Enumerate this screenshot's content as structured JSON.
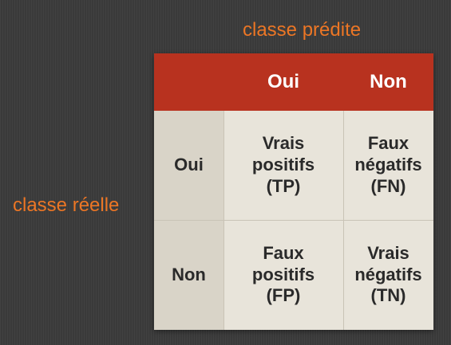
{
  "labels": {
    "predicted_class": "classe prédite",
    "actual_class": "classe réelle"
  },
  "columns": [
    "Oui",
    "Non"
  ],
  "rows": [
    {
      "label": "Oui",
      "cells": [
        {
          "line1": "Vrais",
          "line2": "positifs",
          "line3": "(TP)"
        },
        {
          "line1": "Faux",
          "line2": "négatifs",
          "line3": "(FN)"
        }
      ]
    },
    {
      "label": "Non",
      "cells": [
        {
          "line1": "Faux",
          "line2": "positifs",
          "line3": "(FP)"
        },
        {
          "line1": "Vrais",
          "line2": "négatifs",
          "line3": "(TN)"
        }
      ]
    }
  ],
  "colors": {
    "accent_orange": "#ec7625",
    "header_red": "#b8321f",
    "row_header_bg": "#d9d4c8",
    "cell_bg": "#e8e4da",
    "background": "#3a3a3a"
  }
}
